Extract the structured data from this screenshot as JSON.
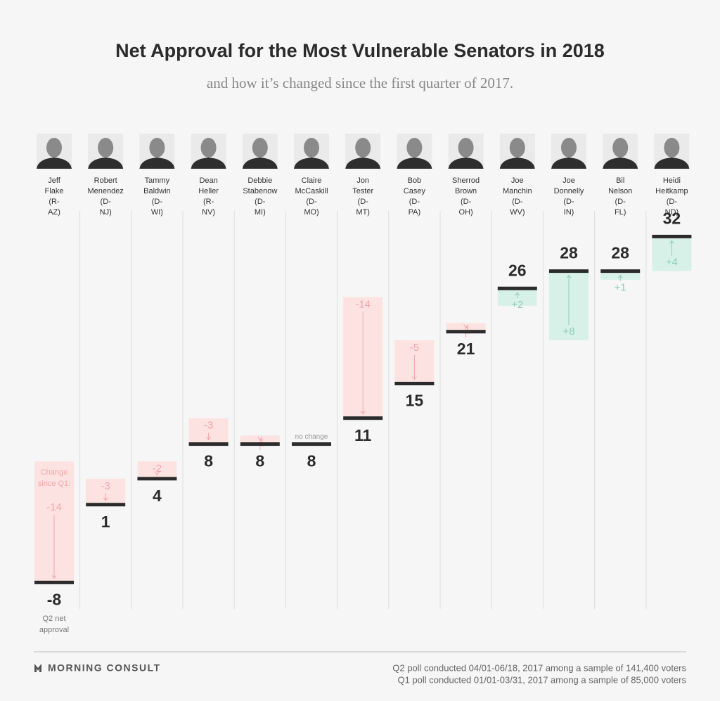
{
  "chart_data": {
    "type": "change-bar",
    "title": "Net Approval for the Most Vulnerable Senators in 2018",
    "subtitle": "and how it’s changed since the first quarter of 2017.",
    "categories": [
      "Jeff Flake",
      "Robert Menendez",
      "Tammy Baldwin",
      "Dean Heller",
      "Debbie Stabenow",
      "Claire McCaskill",
      "Jon Tester",
      "Bob Casey",
      "Sherrod Brown",
      "Joe Manchin",
      "Joe Donnelly",
      "Bil Nelson",
      "Heidi Heitkamp"
    ],
    "parties": [
      "(R-AZ)",
      "(D-NJ)",
      "(D-WI)",
      "(R-NV)",
      "(D-MI)",
      "(D-MO)",
      "(D-MT)",
      "(D-PA)",
      "(D-OH)",
      "(D-WV)",
      "(D-IN)",
      "(D-FL)",
      "(D-ND)"
    ],
    "series": [
      {
        "name": "Q2 net approval",
        "color": "#2b2b2b",
        "values": [
          -8,
          1,
          4,
          8,
          8,
          8,
          11,
          15,
          21,
          26,
          28,
          28,
          32
        ]
      },
      {
        "name": "Change since Q1:",
        "negative_color": "#fde2e2",
        "negative_label_color": "#f2a5a5",
        "positive_color": "#d8f1e8",
        "positive_label_color": "#8dcdb7",
        "neutral_label_color": "#999999",
        "values": [
          -14,
          -3,
          -2,
          -3,
          -1,
          0,
          -14,
          -5,
          -1,
          2,
          8,
          1,
          4
        ],
        "value_labels": [
          "-14",
          "-3",
          "-2",
          "-3",
          "-1",
          "no change",
          "-14",
          "-5",
          "-1",
          "+2",
          "+8",
          "+1",
          "+4"
        ]
      }
    ],
    "source": "MORNING CONSULT",
    "notes": [
      "Q2 poll conducted 04/01-06/18, 2017 among a sample of 141,400 voters",
      "Q1 poll conducted 01/01-03/31, 2017 among a sample of 85,000 voters"
    ]
  }
}
